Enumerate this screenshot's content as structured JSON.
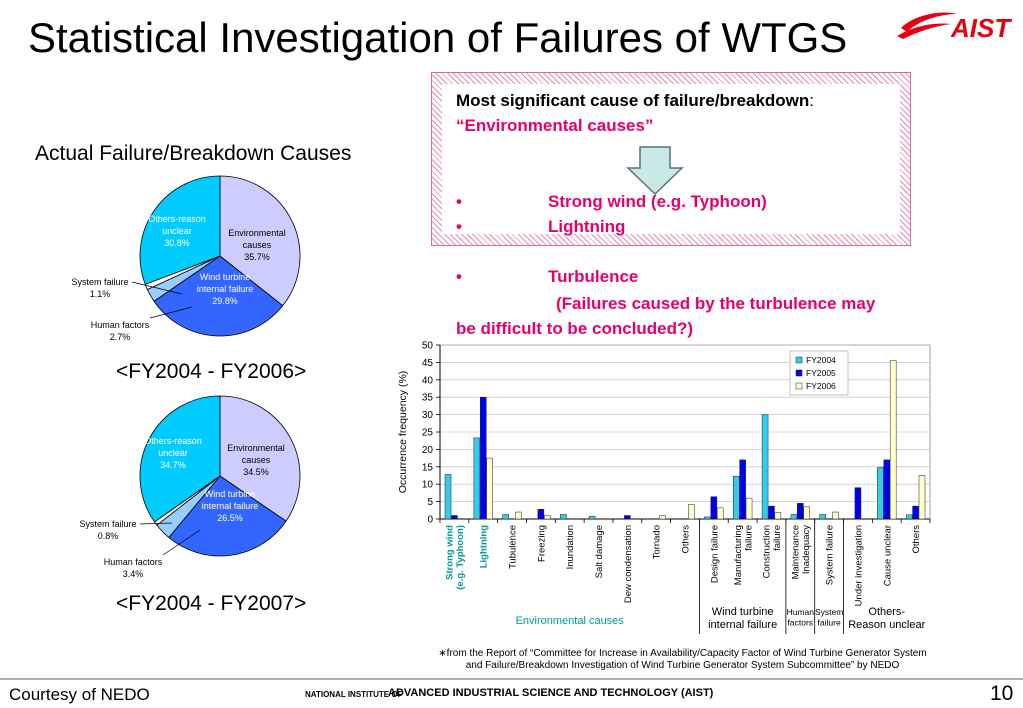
{
  "slide": {
    "title": "Statistical Investigation of Failures of WTGS",
    "logo_text": "AIST",
    "pie_heading": "Actual Failure/Breakdown Causes",
    "callout": {
      "headline": "Most significant cause of failure/breakdown",
      "headline_colon": ":",
      "headline_sub": "“Environmental causes”",
      "bullets": [
        "•",
        "•",
        "•"
      ],
      "causes": [
        "Strong wind (e.g. Typhoon)",
        "Lightning",
        "Turbulence"
      ],
      "note_line1": "(Failures caused by the turbulence may",
      "note_line2": "be difficult to be concluded?)"
    },
    "footnote_line1": "∗from the Report of “Committee for Increase in Availability/Capacity Factor of Wind Turbine Generator System",
    "footnote_line2": "and Failure/Breakdown Investigation of Wind Turbine Generator System Subcommittee” by NEDO",
    "courtesy": "Courtesy of NEDO",
    "institute_small": "NATIONAL INSTITUTE OF",
    "institute_big": "ADVANCED INDUSTRIAL SCIENCE AND TECHNOLOGY (AIST)",
    "page_number": "10"
  },
  "colors": {
    "title": "#000000",
    "accent_pink": "#e8006a",
    "pie_env": "#ccccff",
    "pie_wind": "#3366ff",
    "pie_human": "#99ccff",
    "pie_system": "#ffffff",
    "pie_others": "#00ccff",
    "bar_2004": "#33ccee",
    "bar_2005": "#0000ee",
    "bar_2006": "#ffffcc",
    "group_label_teal": "#009999"
  },
  "chart_data": [
    {
      "type": "pie",
      "caption": "<FY2004 - FY2006>",
      "slices": [
        {
          "label": [
            "Environmental",
            "causes",
            "35.7%"
          ],
          "value": 35.7
        },
        {
          "label": [
            "Wind turbine",
            "internal failure",
            "29.8%"
          ],
          "value": 29.8
        },
        {
          "label": [
            "Human factors",
            "2.7%"
          ],
          "value": 2.7
        },
        {
          "label": [
            "System failure",
            "1.1%"
          ],
          "value": 1.1
        },
        {
          "label": [
            "Others-reason",
            "unclear",
            "30.8%"
          ],
          "value": 30.8
        }
      ]
    },
    {
      "type": "pie",
      "caption": "<FY2004 - FY2007>",
      "slices": [
        {
          "label": [
            "Environmental",
            "causes",
            "34.5%"
          ],
          "value": 34.5
        },
        {
          "label": [
            "Wind turbine",
            "internal failure",
            "26.5%"
          ],
          "value": 26.5
        },
        {
          "label": [
            "Human factors",
            "3.4%"
          ],
          "value": 3.4
        },
        {
          "label": [
            "System failure",
            "0.8%"
          ],
          "value": 0.8
        },
        {
          "label": [
            "Others-reason",
            "unclear",
            "34.7%"
          ],
          "value": 34.7
        }
      ]
    },
    {
      "type": "bar",
      "ylabel": "Occurrence frequency (%)",
      "ylim": [
        0,
        50
      ],
      "yticks": [
        0,
        5,
        10,
        15,
        20,
        25,
        30,
        35,
        40,
        45,
        50
      ],
      "legend_position": "top-right",
      "categories": [
        [
          "Strong wind",
          "(e.g. Typhoon)"
        ],
        [
          "Lightning"
        ],
        [
          "Tubulence"
        ],
        [
          "Freezing"
        ],
        [
          "Inundation"
        ],
        [
          "Salt damage"
        ],
        [
          "Dew condensation"
        ],
        [
          "Tornado"
        ],
        [
          "Others"
        ],
        [
          "Design failure"
        ],
        [
          "Manufacturing",
          "failure"
        ],
        [
          "Construction",
          "failure"
        ],
        [
          "Maintenance",
          "Inadequacy"
        ],
        [
          "System failure"
        ],
        [
          "Under investigation"
        ],
        [
          "Cause unclear"
        ],
        [
          "Others"
        ]
      ],
      "highlight_categories": [
        0,
        1
      ],
      "series": [
        {
          "name": "FY2004",
          "values": [
            12.8,
            23.3,
            1.3,
            0.0,
            1.3,
            0.8,
            0.0,
            0.0,
            0.0,
            0.6,
            12.3,
            30.0,
            1.3,
            1.3,
            0.0,
            14.8,
            1.2
          ]
        },
        {
          "name": "FY2005",
          "values": [
            1.0,
            35.0,
            0.0,
            2.8,
            0.0,
            0.0,
            1.0,
            0.0,
            0.0,
            6.4,
            17.0,
            3.7,
            4.5,
            0.0,
            9.0,
            17.0,
            3.7
          ]
        },
        {
          "name": "FY2006",
          "values": [
            0.0,
            17.5,
            2.0,
            1.0,
            0.0,
            0.0,
            0.0,
            1.0,
            4.2,
            3.2,
            6.0,
            1.8,
            3.5,
            2.0,
            0.0,
            45.5,
            12.5
          ]
        }
      ],
      "groups": [
        {
          "label": [
            "Environmental causes"
          ],
          "from": 0,
          "to": 8
        },
        {
          "label": [
            "Wind turbine",
            "internal failure"
          ],
          "from": 9,
          "to": 11
        },
        {
          "label": [
            "Human",
            "factors"
          ],
          "from": 12,
          "to": 12
        },
        {
          "label": [
            "System",
            "failure"
          ],
          "from": 13,
          "to": 13
        },
        {
          "label": [
            "Others-",
            "Reason unclear"
          ],
          "from": 14,
          "to": 16
        }
      ]
    }
  ]
}
